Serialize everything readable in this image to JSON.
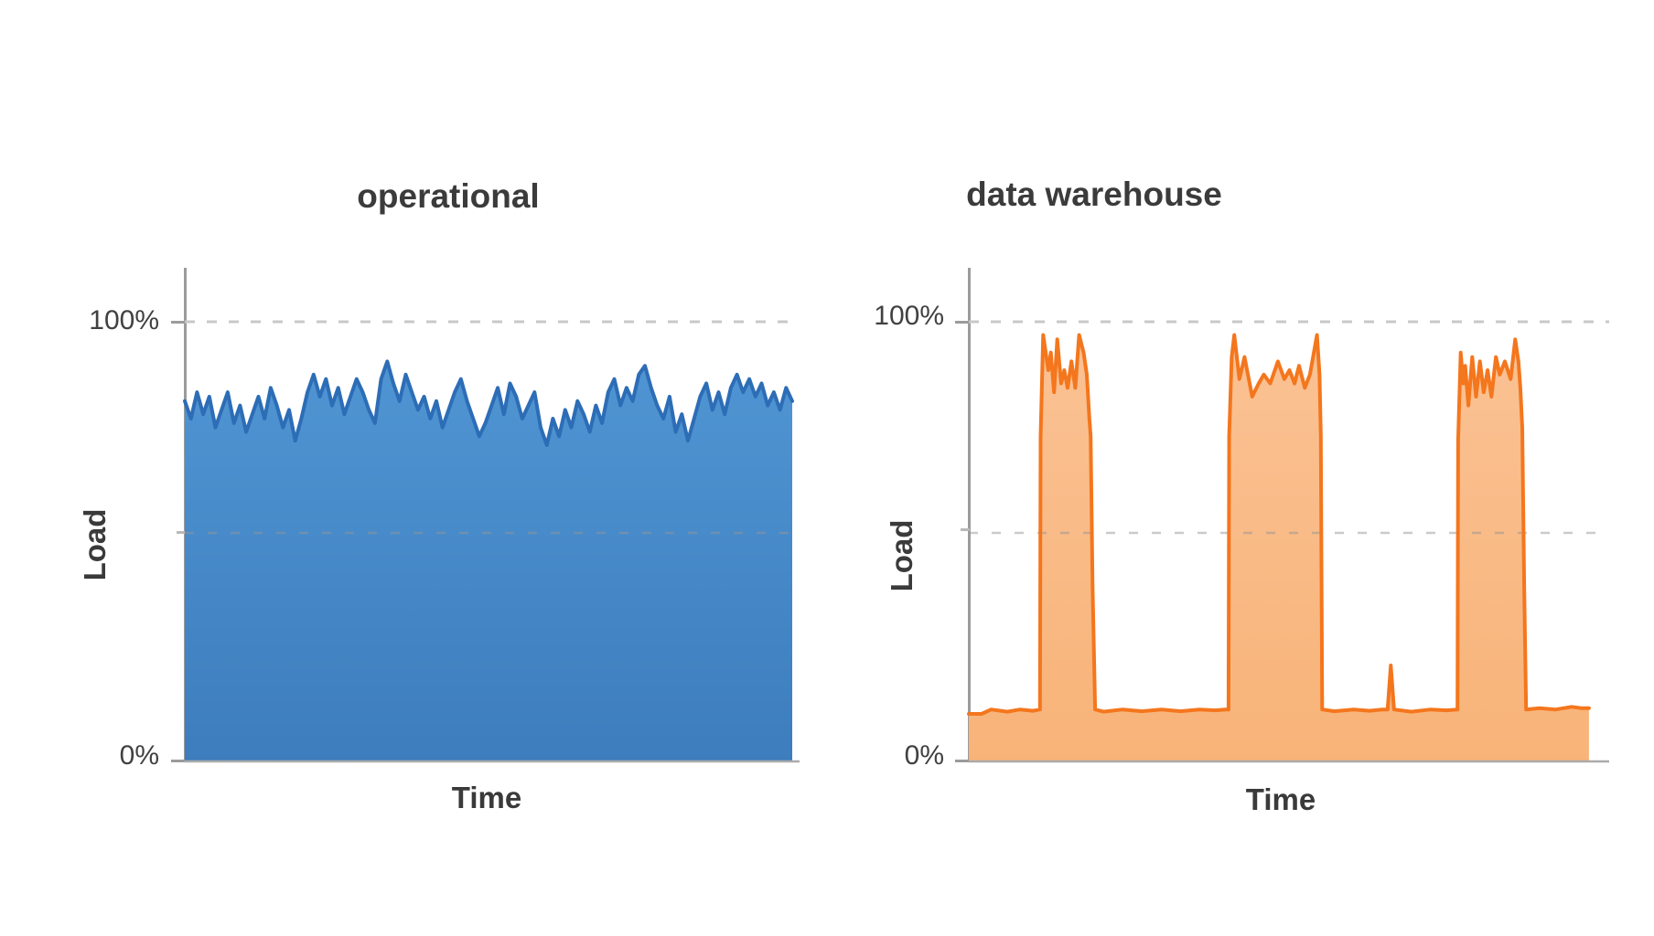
{
  "figure": {
    "background": "#ffffff",
    "text_color": "#3b3b3b",
    "description_visible_text_only": true
  },
  "chart_data": [
    {
      "type": "area",
      "title": "operational",
      "xlabel": "Time",
      "ylabel": "Load",
      "yticks": [
        "100%",
        "0%"
      ],
      "ylim": [
        0,
        100
      ],
      "grid": "dashed horizontal lines at 100% and ~50%, no vertical grid",
      "legend": "none",
      "line_color": "#2d6db6",
      "fill_top": "#5095d3",
      "fill_bottom": "#3d7dbd",
      "values_pct": [
        82,
        78,
        84,
        79,
        83,
        76,
        80,
        84,
        77,
        81,
        75,
        79,
        83,
        78,
        85,
        81,
        76,
        80,
        73,
        78,
        84,
        88,
        83,
        87,
        81,
        85,
        79,
        83,
        87,
        84,
        80,
        77,
        87,
        91,
        86,
        82,
        88,
        84,
        80,
        83,
        78,
        82,
        76,
        80,
        84,
        87,
        82,
        78,
        74,
        77,
        81,
        85,
        79,
        86,
        83,
        78,
        81,
        84,
        76,
        72,
        78,
        74,
        80,
        76,
        82,
        79,
        75,
        81,
        77,
        84,
        87,
        81,
        85,
        82,
        88,
        90,
        85,
        81,
        78,
        83,
        75,
        79,
        73,
        78,
        83,
        86,
        80,
        84,
        79,
        85,
        88,
        84,
        87,
        83,
        86,
        81,
        84,
        80,
        85,
        82
      ]
    },
    {
      "type": "area",
      "title": "data warehouse",
      "xlabel": "Time",
      "ylabel": "Load",
      "yticks": [
        "100%",
        "0%"
      ],
      "ylim": [
        0,
        100
      ],
      "grid": "dashed horizontal lines at 100% and ~50%, no vertical grid",
      "legend": "none",
      "line_color": "#f4761d",
      "fill_top": "#fac294",
      "fill_bottom": "#f8b378",
      "points_frac_pct": [
        [
          0,
          11
        ],
        [
          0.02,
          11
        ],
        [
          0.035,
          12
        ],
        [
          0.06,
          11.5
        ],
        [
          0.08,
          12
        ],
        [
          0.1,
          11.7
        ],
        [
          0.111,
          12
        ],
        [
          0.112,
          74
        ],
        [
          0.116,
          97
        ],
        [
          0.124,
          89
        ],
        [
          0.128,
          93
        ],
        [
          0.133,
          84
        ],
        [
          0.138,
          96
        ],
        [
          0.144,
          86
        ],
        [
          0.149,
          89
        ],
        [
          0.154,
          85
        ],
        [
          0.16,
          91
        ],
        [
          0.166,
          85
        ],
        [
          0.172,
          97
        ],
        [
          0.179,
          93
        ],
        [
          0.184,
          88
        ],
        [
          0.188,
          78
        ],
        [
          0.19,
          74
        ],
        [
          0.193,
          40
        ],
        [
          0.197,
          12
        ],
        [
          0.21,
          11.5
        ],
        [
          0.24,
          12
        ],
        [
          0.27,
          11.6
        ],
        [
          0.3,
          12
        ],
        [
          0.33,
          11.6
        ],
        [
          0.36,
          12
        ],
        [
          0.385,
          11.8
        ],
        [
          0.4,
          12
        ],
        [
          0.405,
          12
        ],
        [
          0.406,
          74
        ],
        [
          0.41,
          92
        ],
        [
          0.414,
          97
        ],
        [
          0.422,
          87
        ],
        [
          0.43,
          92
        ],
        [
          0.442,
          83
        ],
        [
          0.452,
          86
        ],
        [
          0.46,
          88
        ],
        [
          0.47,
          86
        ],
        [
          0.482,
          91
        ],
        [
          0.492,
          87
        ],
        [
          0.5,
          89
        ],
        [
          0.508,
          86
        ],
        [
          0.515,
          90
        ],
        [
          0.524,
          85
        ],
        [
          0.532,
          88
        ],
        [
          0.543,
          97
        ],
        [
          0.547,
          88
        ],
        [
          0.549,
          74
        ],
        [
          0.551,
          12
        ],
        [
          0.57,
          11.6
        ],
        [
          0.6,
          12
        ],
        [
          0.625,
          11.7
        ],
        [
          0.645,
          12
        ],
        [
          0.653,
          12
        ],
        [
          0.658,
          22
        ],
        [
          0.663,
          12
        ],
        [
          0.69,
          11.5
        ],
        [
          0.72,
          12
        ],
        [
          0.745,
          11.8
        ],
        [
          0.762,
          12
        ],
        [
          0.763,
          73
        ],
        [
          0.767,
          93
        ],
        [
          0.771,
          86
        ],
        [
          0.774,
          90
        ],
        [
          0.779,
          81
        ],
        [
          0.785,
          92
        ],
        [
          0.791,
          83
        ],
        [
          0.797,
          91
        ],
        [
          0.803,
          84
        ],
        [
          0.809,
          89
        ],
        [
          0.815,
          83
        ],
        [
          0.822,
          92
        ],
        [
          0.828,
          88
        ],
        [
          0.836,
          91
        ],
        [
          0.845,
          87
        ],
        [
          0.852,
          96
        ],
        [
          0.857,
          91
        ],
        [
          0.86,
          85
        ],
        [
          0.863,
          76
        ],
        [
          0.866,
          40
        ],
        [
          0.869,
          12
        ],
        [
          0.89,
          12.3
        ],
        [
          0.915,
          12
        ],
        [
          0.94,
          12.6
        ],
        [
          0.955,
          12.3
        ],
        [
          0.967,
          12.3
        ]
      ]
    }
  ]
}
